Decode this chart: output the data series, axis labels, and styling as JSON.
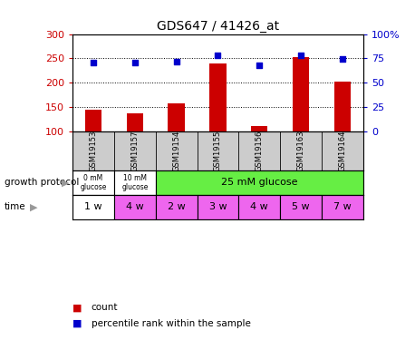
{
  "title": "GDS647 / 41426_at",
  "samples": [
    "GSM19153",
    "GSM19157",
    "GSM19154",
    "GSM19155",
    "GSM19156",
    "GSM19163",
    "GSM19164"
  ],
  "counts": [
    145,
    137,
    157,
    239,
    110,
    252,
    202
  ],
  "percentile_ranks": [
    70.5,
    70.5,
    72,
    78,
    68,
    78.5,
    74
  ],
  "ylim_left": [
    100,
    300
  ],
  "ylim_right": [
    0,
    100
  ],
  "yticks_left": [
    100,
    150,
    200,
    250,
    300
  ],
  "yticks_right": [
    0,
    25,
    50,
    75,
    100
  ],
  "bar_color": "#cc0000",
  "dot_color": "#0000cc",
  "protocol_colors": [
    "#ffffff",
    "#ffffff",
    "#66ee44"
  ],
  "protocol_labels": [
    "0 mM\nglucose",
    "10 mM\nglucose",
    "25 mM glucose"
  ],
  "time_labels": [
    "1 w",
    "4 w",
    "2 w",
    "3 w",
    "4 w",
    "5 w",
    "7 w"
  ],
  "time_colors": [
    "#ffffff",
    "#ee66ee",
    "#ee66ee",
    "#ee66ee",
    "#ee66ee",
    "#ee66ee",
    "#ee66ee"
  ],
  "left_tick_color": "#cc0000",
  "right_tick_color": "#0000cc",
  "sample_bg_color": "#cccccc",
  "fig_bg_color": "#ffffff"
}
